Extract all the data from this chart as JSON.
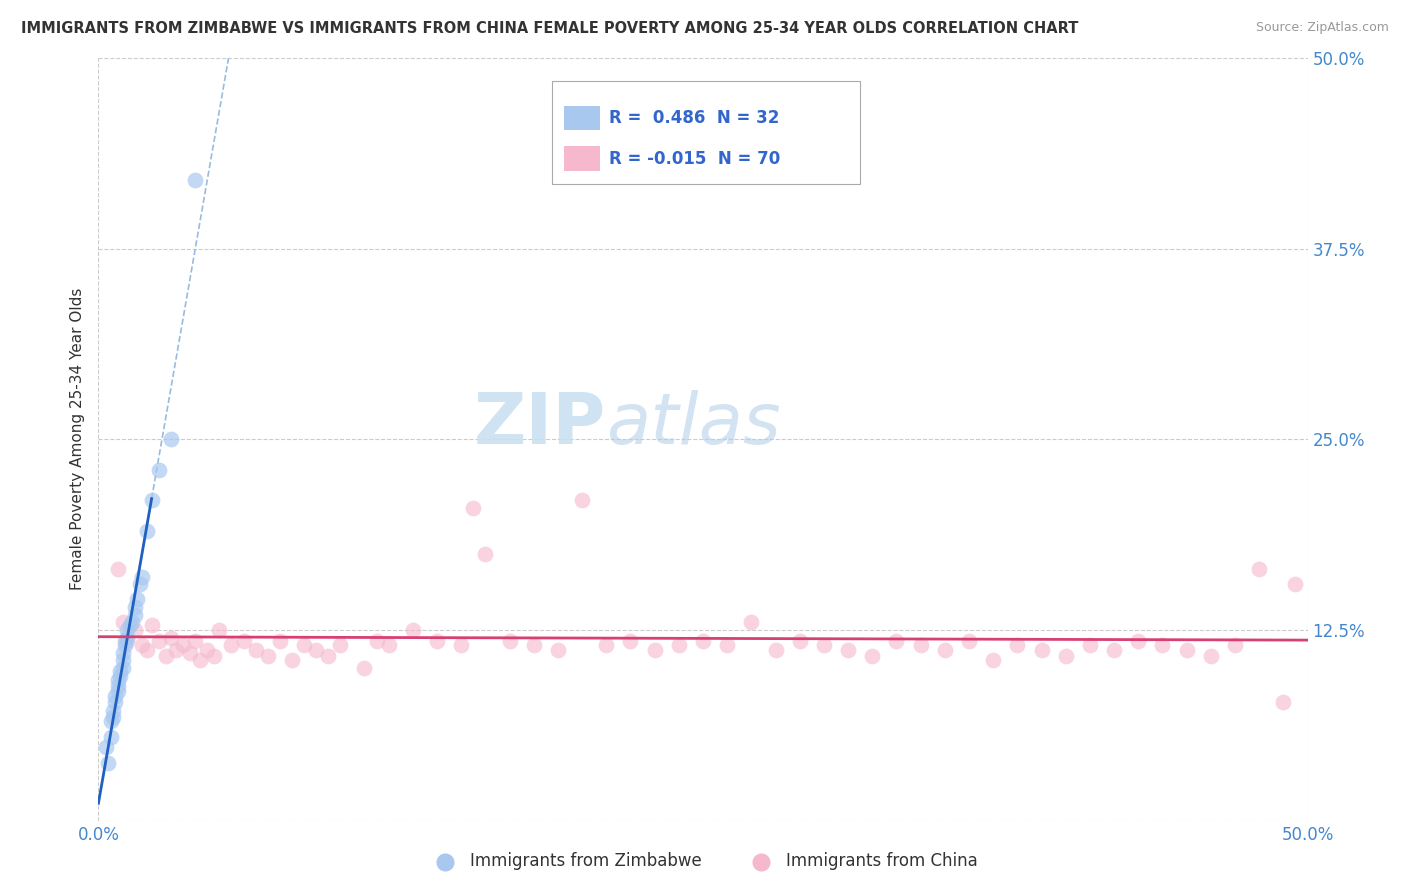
{
  "title": "IMMIGRANTS FROM ZIMBABWE VS IMMIGRANTS FROM CHINA FEMALE POVERTY AMONG 25-34 YEAR OLDS CORRELATION CHART",
  "source": "Source: ZipAtlas.com",
  "ylabel": "Female Poverty Among 25-34 Year Olds",
  "xlim": [
    0.0,
    0.5
  ],
  "ylim": [
    0.0,
    0.5
  ],
  "yticks": [
    0.0,
    0.125,
    0.25,
    0.375,
    0.5
  ],
  "ytick_labels": [
    "",
    "12.5%",
    "25.0%",
    "37.5%",
    "50.0%"
  ],
  "legend1_r": "0.486",
  "legend1_n": "32",
  "legend2_r": "-0.015",
  "legend2_n": "70",
  "zimbabwe_color": "#a8c8f0",
  "china_color": "#f5b8cc",
  "zimbabwe_line_color": "#2060c0",
  "china_line_color": "#d84070",
  "background_color": "#ffffff",
  "grid_color": "#cccccc",
  "watermark_zip": "ZIP",
  "watermark_atlas": "atlas",
  "zimbabwe_x": [
    0.003,
    0.004,
    0.005,
    0.005,
    0.006,
    0.006,
    0.007,
    0.007,
    0.008,
    0.008,
    0.008,
    0.009,
    0.009,
    0.01,
    0.01,
    0.01,
    0.011,
    0.011,
    0.012,
    0.012,
    0.013,
    0.014,
    0.015,
    0.015,
    0.016,
    0.017,
    0.018,
    0.02,
    0.022,
    0.025,
    0.03,
    0.04
  ],
  "zimbabwe_y": [
    0.048,
    0.038,
    0.055,
    0.065,
    0.068,
    0.072,
    0.078,
    0.082,
    0.085,
    0.088,
    0.092,
    0.095,
    0.098,
    0.1,
    0.105,
    0.11,
    0.115,
    0.118,
    0.12,
    0.125,
    0.128,
    0.13,
    0.135,
    0.14,
    0.145,
    0.155,
    0.16,
    0.19,
    0.21,
    0.23,
    0.25,
    0.42
  ],
  "china_x": [
    0.008,
    0.01,
    0.012,
    0.015,
    0.018,
    0.02,
    0.022,
    0.025,
    0.028,
    0.03,
    0.032,
    0.035,
    0.038,
    0.04,
    0.042,
    0.045,
    0.048,
    0.05,
    0.055,
    0.06,
    0.065,
    0.07,
    0.075,
    0.08,
    0.085,
    0.09,
    0.095,
    0.1,
    0.11,
    0.115,
    0.12,
    0.13,
    0.14,
    0.15,
    0.155,
    0.16,
    0.17,
    0.18,
    0.19,
    0.2,
    0.21,
    0.22,
    0.23,
    0.24,
    0.25,
    0.26,
    0.27,
    0.28,
    0.29,
    0.3,
    0.31,
    0.32,
    0.33,
    0.34,
    0.35,
    0.36,
    0.37,
    0.38,
    0.39,
    0.4,
    0.41,
    0.42,
    0.43,
    0.44,
    0.45,
    0.46,
    0.47,
    0.48,
    0.49,
    0.495
  ],
  "china_y": [
    0.165,
    0.13,
    0.118,
    0.125,
    0.115,
    0.112,
    0.128,
    0.118,
    0.108,
    0.12,
    0.112,
    0.115,
    0.11,
    0.118,
    0.105,
    0.112,
    0.108,
    0.125,
    0.115,
    0.118,
    0.112,
    0.108,
    0.118,
    0.105,
    0.115,
    0.112,
    0.108,
    0.115,
    0.1,
    0.118,
    0.115,
    0.125,
    0.118,
    0.115,
    0.205,
    0.175,
    0.118,
    0.115,
    0.112,
    0.21,
    0.115,
    0.118,
    0.112,
    0.115,
    0.118,
    0.115,
    0.13,
    0.112,
    0.118,
    0.115,
    0.112,
    0.108,
    0.118,
    0.115,
    0.112,
    0.118,
    0.105,
    0.115,
    0.112,
    0.108,
    0.115,
    0.112,
    0.118,
    0.115,
    0.112,
    0.108,
    0.115,
    0.165,
    0.078,
    0.155
  ]
}
